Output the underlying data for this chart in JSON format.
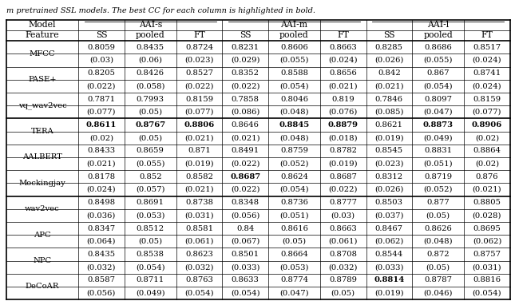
{
  "caption": "m pretrained SSL models. The best CC for each column is highlighted in bold.",
  "rows": [
    {
      "model": "MFCC",
      "values": [
        "0.8059",
        "0.8435",
        "0.8724",
        "0.8231",
        "0.8606",
        "0.8663",
        "0.8285",
        "0.8686",
        "0.8517"
      ],
      "stds": [
        "(0.03)",
        "(0.06)",
        "(0.023)",
        "(0.029)",
        "(0.055)",
        "(0.024)",
        "(0.026)",
        "(0.055)",
        "(0.024)"
      ],
      "bold": [
        false,
        false,
        false,
        false,
        false,
        false,
        false,
        false,
        false
      ]
    },
    {
      "model": "PASE+",
      "values": [
        "0.8205",
        "0.8426",
        "0.8527",
        "0.8352",
        "0.8588",
        "0.8656",
        "0.842",
        "0.867",
        "0.8741"
      ],
      "stds": [
        "(0.022)",
        "(0.058)",
        "(0.022)",
        "(0.022)",
        "(0.054)",
        "(0.021)",
        "(0.021)",
        "(0.054)",
        "(0.024)"
      ],
      "bold": [
        false,
        false,
        false,
        false,
        false,
        false,
        false,
        false,
        false
      ]
    },
    {
      "model": "vq_wav2vec",
      "values": [
        "0.7871",
        "0.7993",
        "0.8159",
        "0.7858",
        "0.8046",
        "0.819",
        "0.7846",
        "0.8097",
        "0.8159"
      ],
      "stds": [
        "(0.077)",
        "(0.05)",
        "(0.077)",
        "(0.086)",
        "(0.048)",
        "(0.076)",
        "(0.085)",
        "(0.047)",
        "(0.077)"
      ],
      "bold": [
        false,
        false,
        false,
        false,
        false,
        false,
        false,
        false,
        false
      ]
    },
    {
      "model": "TERA",
      "values": [
        "0.8611",
        "0.8767",
        "0.8806",
        "0.8646",
        "0.8845",
        "0.8879",
        "0.8621",
        "0.8873",
        "0.8906"
      ],
      "stds": [
        "(0.02)",
        "(0.05)",
        "(0.021)",
        "(0.021)",
        "(0.048)",
        "(0.018)",
        "(0.019)",
        "(0.049)",
        "(0.02)"
      ],
      "bold": [
        true,
        true,
        true,
        false,
        true,
        true,
        false,
        true,
        true
      ]
    },
    {
      "model": "AALBERT",
      "values": [
        "0.8433",
        "0.8659",
        "0.871",
        "0.8491",
        "0.8759",
        "0.8782",
        "0.8545",
        "0.8831",
        "0.8864"
      ],
      "stds": [
        "(0.021)",
        "(0.055)",
        "(0.019)",
        "(0.022)",
        "(0.052)",
        "(0.019)",
        "(0.023)",
        "(0.051)",
        "(0.02)"
      ],
      "bold": [
        false,
        false,
        false,
        false,
        false,
        false,
        false,
        false,
        false
      ]
    },
    {
      "model": "Mockingjay",
      "values": [
        "0.8178",
        "0.852",
        "0.8582",
        "0.8687",
        "0.8624",
        "0.8687",
        "0.8312",
        "0.8719",
        "0.876"
      ],
      "stds": [
        "(0.024)",
        "(0.057)",
        "(0.021)",
        "(0.022)",
        "(0.054)",
        "(0.022)",
        "(0.026)",
        "(0.052)",
        "(0.021)"
      ],
      "bold": [
        false,
        false,
        false,
        true,
        false,
        false,
        false,
        false,
        false
      ]
    },
    {
      "model": "wav2vec",
      "values": [
        "0.8498",
        "0.8691",
        "0.8738",
        "0.8348",
        "0.8736",
        "0.8777",
        "0.8503",
        "0.877",
        "0.8805"
      ],
      "stds": [
        "(0.036)",
        "(0.053)",
        "(0.031)",
        "(0.056)",
        "(0.051)",
        "(0.03)",
        "(0.037)",
        "(0.05)",
        "(0.028)"
      ],
      "bold": [
        false,
        false,
        false,
        false,
        false,
        false,
        false,
        false,
        false
      ]
    },
    {
      "model": "APC",
      "values": [
        "0.8347",
        "0.8512",
        "0.8581",
        "0.84",
        "0.8616",
        "0.8663",
        "0.8467",
        "0.8626",
        "0.8695"
      ],
      "stds": [
        "(0.064)",
        "(0.05)",
        "(0.061)",
        "(0.067)",
        "(0.05)",
        "(0.061)",
        "(0.062)",
        "(0.048)",
        "(0.062)"
      ],
      "bold": [
        false,
        false,
        false,
        false,
        false,
        false,
        false,
        false,
        false
      ]
    },
    {
      "model": "NPC",
      "values": [
        "0.8435",
        "0.8538",
        "0.8623",
        "0.8501",
        "0.8664",
        "0.8708",
        "0.8544",
        "0.872",
        "0.8757"
      ],
      "stds": [
        "(0.032)",
        "(0.054)",
        "(0.032)",
        "(0.033)",
        "(0.053)",
        "(0.032)",
        "(0.033)",
        "(0.05)",
        "(0.031)"
      ],
      "bold": [
        false,
        false,
        false,
        false,
        false,
        false,
        false,
        false,
        false
      ]
    },
    {
      "model": "DeCoAR",
      "values": [
        "0.8587",
        "0.8711",
        "0.8763",
        "0.8633",
        "0.8774",
        "0.8789",
        "0.8814",
        "0.8787",
        "0.8816"
      ],
      "stds": [
        "(0.056)",
        "(0.049)",
        "(0.054)",
        "(0.054)",
        "(0.047)",
        "(0.05)",
        "(0.019)",
        "(0.046)",
        "(0.054)"
      ],
      "bold": [
        false,
        false,
        false,
        false,
        false,
        false,
        true,
        false,
        false
      ]
    }
  ],
  "thick_after_model_idx": [
    2,
    5
  ],
  "col_headers": [
    "SS",
    "pooled",
    "FT",
    "SS",
    "pooled",
    "FT",
    "SS",
    "pooled",
    "FT"
  ],
  "group_headers": [
    "AAI-s",
    "AAI-m",
    "AAI-l"
  ],
  "background_color": "#ffffff",
  "font_size": 7.2,
  "header_font_size": 7.8,
  "fig_width": 6.4,
  "fig_height": 3.77,
  "dpi": 100
}
